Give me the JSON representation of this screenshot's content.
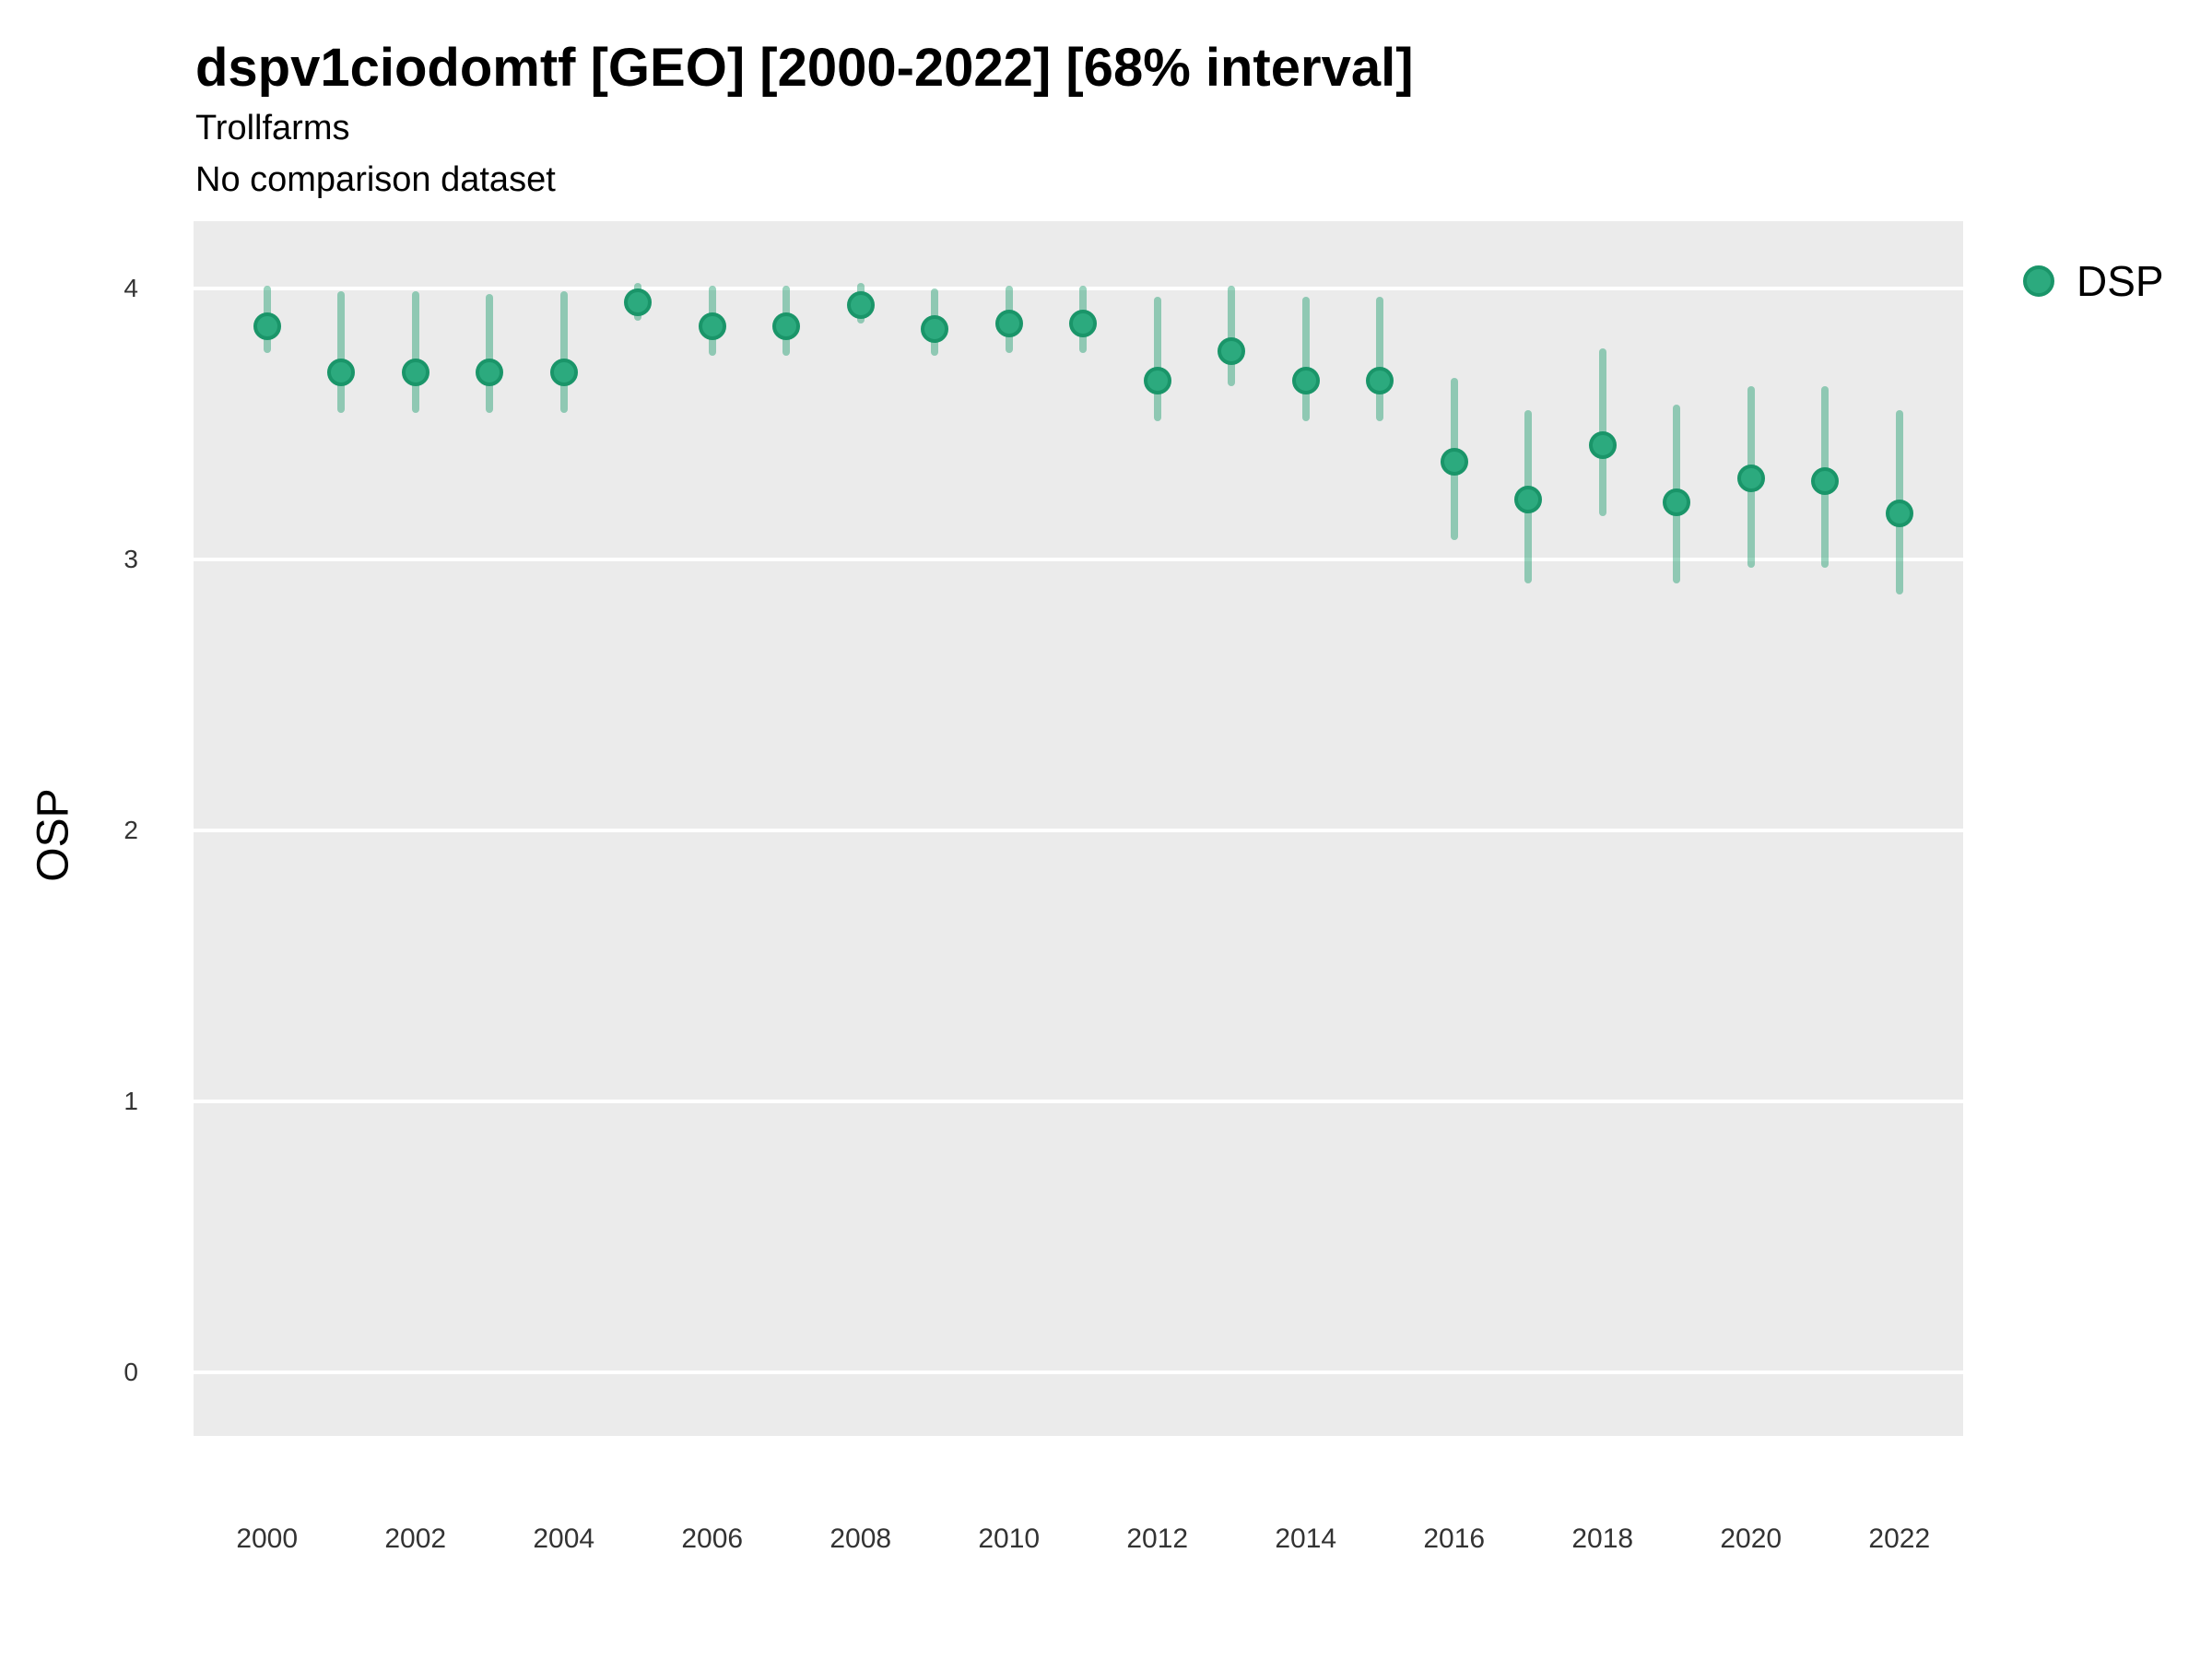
{
  "header": {
    "title": "dspv1ciodomtf [GEO] [2000-2022] [68% interval]",
    "subtitle": "Trollfarms",
    "note": "No comparison dataset"
  },
  "legend": {
    "position": "top-right",
    "items": [
      {
        "label": "DSP",
        "marker": "circle",
        "color": "#2CAA7E"
      }
    ]
  },
  "chart_data": {
    "type": "scatter",
    "title": "dspv1ciodomtf [GEO] [2000-2022] [68% interval]",
    "subtitle": "Trollfarms",
    "note": "No comparison dataset",
    "xlabel": "",
    "ylabel": "OSP",
    "interval": "68%",
    "x_ticks": [
      2000,
      2002,
      2004,
      2006,
      2008,
      2010,
      2012,
      2014,
      2016,
      2018,
      2020,
      2022
    ],
    "y_ticks": [
      0,
      1,
      2,
      3,
      4
    ],
    "xlim": [
      1999.01,
      2022.86
    ],
    "ylim": [
      -0.235,
      4.248
    ],
    "grid": "horizontal-major-only",
    "legend_position": "right-top",
    "series": [
      {
        "name": "DSP",
        "x": [
          2000,
          2001,
          2002,
          2003,
          2004,
          2005,
          2006,
          2007,
          2008,
          2009,
          2010,
          2011,
          2012,
          2013,
          2014,
          2015,
          2016,
          2017,
          2018,
          2019,
          2020,
          2021,
          2022
        ],
        "y": [
          3.86,
          3.69,
          3.69,
          3.69,
          3.69,
          3.95,
          3.86,
          3.86,
          3.94,
          3.85,
          3.87,
          3.87,
          3.66,
          3.77,
          3.66,
          3.66,
          3.36,
          3.22,
          3.42,
          3.21,
          3.3,
          3.29,
          3.17
        ],
        "y_low": [
          3.76,
          3.54,
          3.54,
          3.54,
          3.54,
          3.88,
          3.75,
          3.75,
          3.87,
          3.75,
          3.76,
          3.76,
          3.51,
          3.64,
          3.51,
          3.51,
          3.07,
          2.91,
          3.16,
          2.91,
          2.97,
          2.97,
          2.87
        ],
        "y_high": [
          4.01,
          3.99,
          3.99,
          3.98,
          3.99,
          4.02,
          4.01,
          4.01,
          4.02,
          4.0,
          4.01,
          4.01,
          3.97,
          4.01,
          3.97,
          3.97,
          3.67,
          3.55,
          3.78,
          3.57,
          3.64,
          3.64,
          3.55
        ]
      }
    ],
    "colors": {
      "point_fill": "#2CAA7E",
      "point_stroke": "#1A9569",
      "interval_bar_rgba": "rgba(31,158,111,0.45)",
      "plot_background": "#EBEBEB",
      "gridline": "#FFFFFF",
      "tick_text": "#333333"
    }
  }
}
